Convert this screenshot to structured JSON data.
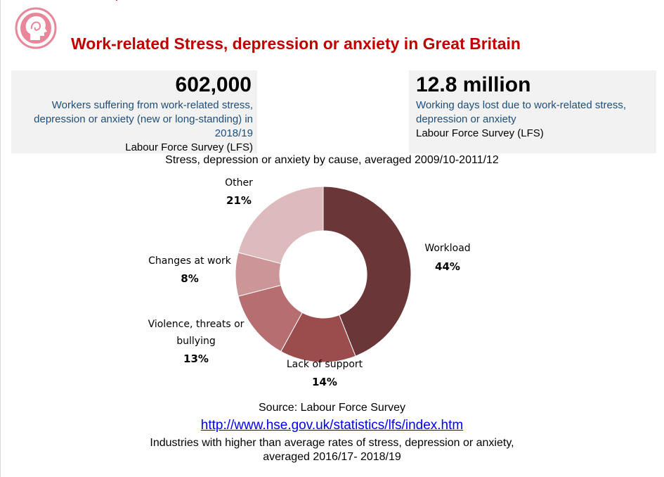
{
  "title": "Work-related Stress, depression or anxiety in Great Britain",
  "stats": [
    {
      "value": "602,000",
      "description": "Workers suffering from work-related stress, depression or anxiety (new or long-standing) in 2018/19",
      "source": "Labour Force Survey (LFS)"
    },
    {
      "value": "12.8 million",
      "description": "Working days lost due to work-related stress, depression or anxiety",
      "source": "Labour Force Survey (LFS)"
    }
  ],
  "chart_title": "Stress, depression or anxiety by cause, averaged 2009/10-2011/12",
  "chart_data": {
    "type": "pie",
    "title": "Stress, depression or anxiety by cause, averaged 2009/10-2011/12",
    "categories": [
      "Workload",
      "Lack of support",
      "Violence, threats or bullying",
      "Changes at work",
      "Other"
    ],
    "values": [
      44,
      14,
      13,
      8,
      21
    ],
    "value_labels": [
      "44%",
      "14%",
      "13%",
      "8%",
      "21%"
    ],
    "colors": [
      "#6b3638",
      "#9b4d4e",
      "#b66e70",
      "#cc9597",
      "#ddbabb"
    ],
    "donut": true,
    "start": "top, clockwise"
  },
  "source_text": "Source: Labour Force Survey",
  "link_text": "http://www.hse.gov.uk/statistics/lfs/index.htm",
  "footer_line1": "Industries with higher than average rates of stress, depression or anxiety,",
  "footer_line2": "averaged 2016/17- 2018/19",
  "colors": {
    "title": "#c00000",
    "logo": "#e8869a",
    "stat_text": "#1f4e79"
  },
  "icons": {
    "logo": "head-silhouette-icon"
  }
}
